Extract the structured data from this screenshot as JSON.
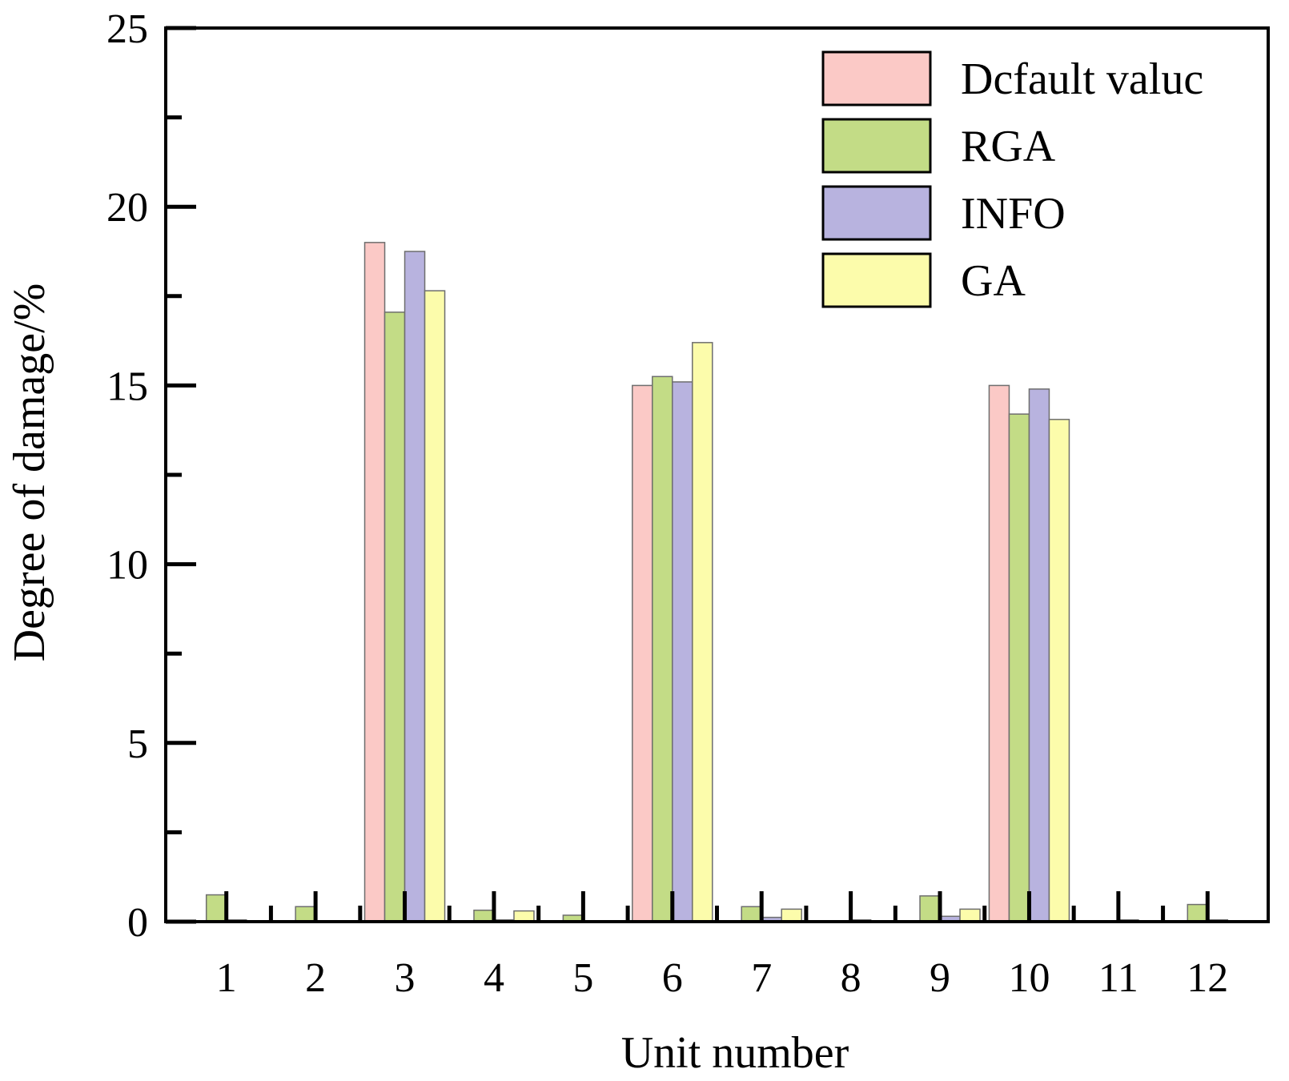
{
  "chart_data": {
    "type": "bar",
    "xlabel": "Unit number",
    "ylabel": "Degree of damage/%",
    "ylim": [
      0,
      25
    ],
    "yticks": [
      "0",
      "5",
      "10",
      "15",
      "20",
      "25"
    ],
    "categories": [
      "1",
      "2",
      "3",
      "4",
      "5",
      "6",
      "7",
      "8",
      "9",
      "10",
      "11",
      "12"
    ],
    "legend_position": "top-right",
    "grid": false,
    "series": [
      {
        "name": "Dcfault valuc",
        "color": "#fbc9c6",
        "values": [
          0,
          0,
          19.0,
          0,
          0,
          15.0,
          0,
          0,
          0,
          15.0,
          0,
          0
        ]
      },
      {
        "name": "RGA",
        "color": "#c3dc86",
        "values": [
          0.75,
          0.42,
          17.05,
          0.32,
          0.18,
          15.25,
          0.42,
          0.0,
          0.72,
          14.2,
          0.0,
          0.48
        ]
      },
      {
        "name": "INFO",
        "color": "#b8b3df",
        "values": [
          0.05,
          0.0,
          18.75,
          0.05,
          0.0,
          15.1,
          0.12,
          0.05,
          0.15,
          14.9,
          0.05,
          0.05
        ]
      },
      {
        "name": "GA",
        "color": "#fcfcab",
        "values": [
          0.0,
          0.0,
          17.65,
          0.3,
          0.0,
          16.2,
          0.35,
          0.0,
          0.35,
          14.05,
          0.0,
          0.0
        ]
      }
    ]
  }
}
